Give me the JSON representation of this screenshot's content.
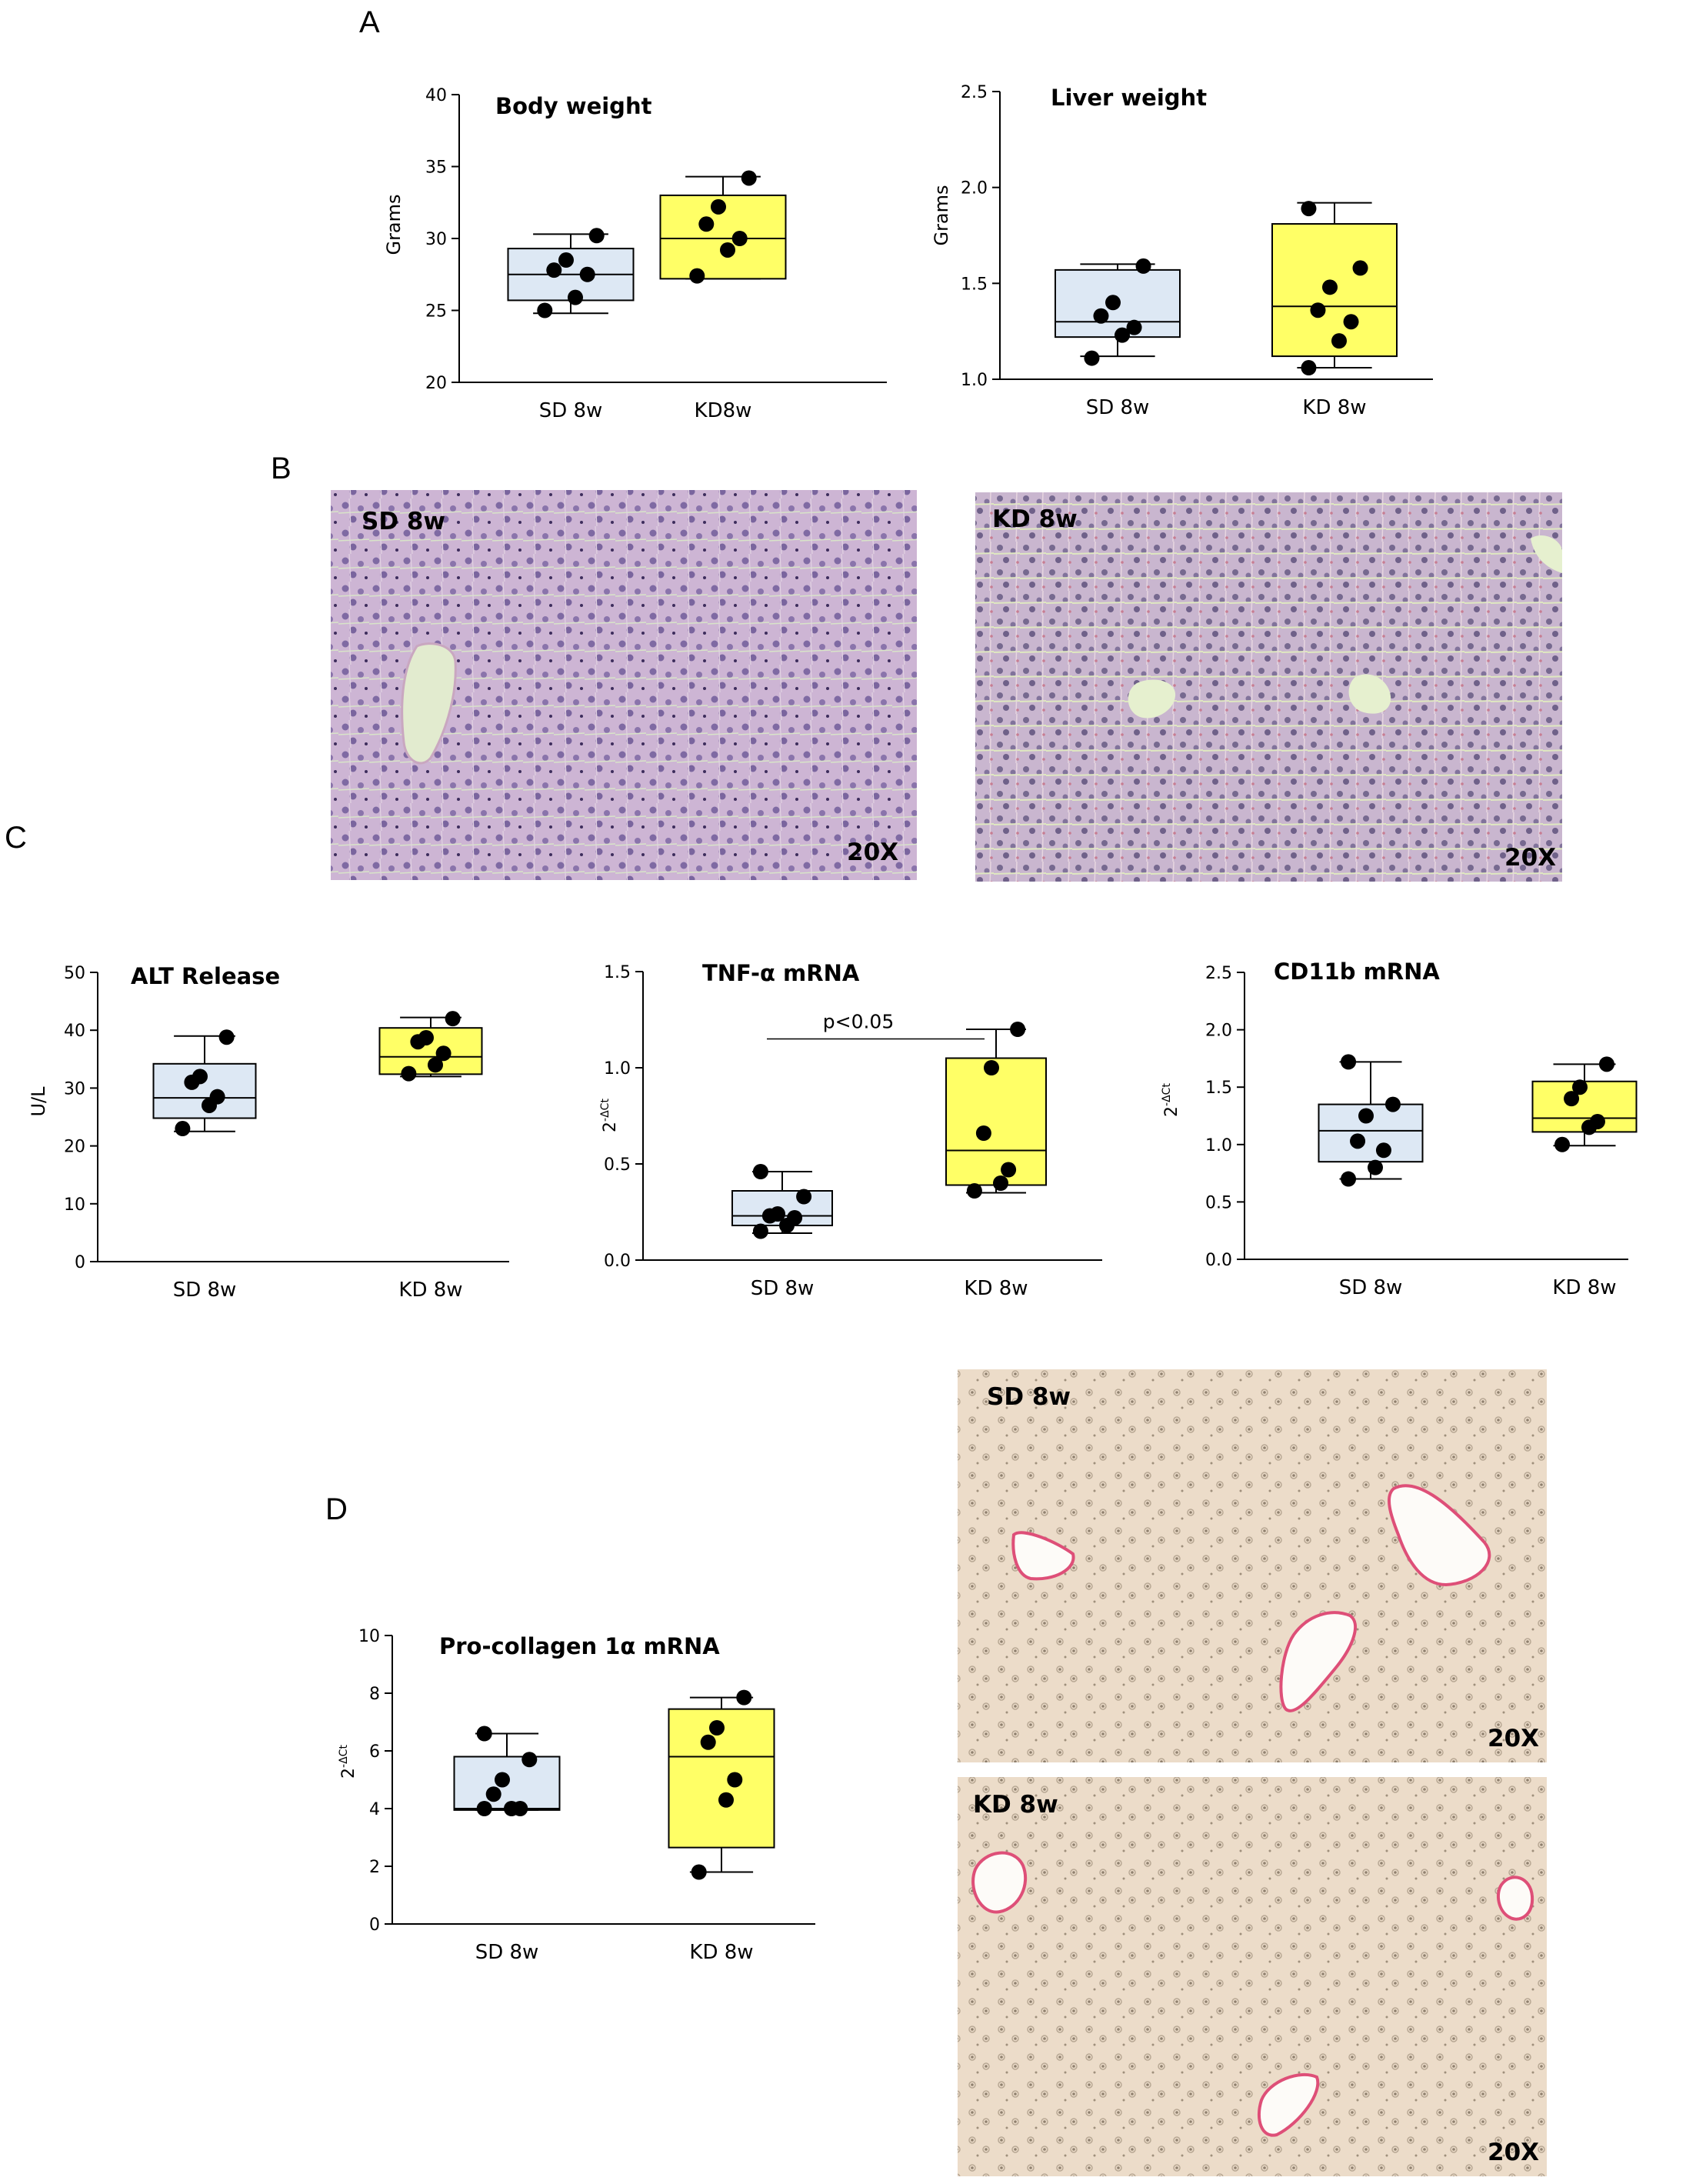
{
  "panels": {
    "A": "A",
    "B": "B",
    "C": "C",
    "D": "D"
  },
  "colors": {
    "sd_fill": "#dde8f4",
    "kd_fill": "#ffff66",
    "he_stain": "#c9b0d2",
    "picro_stain": "#ead9c8"
  },
  "chart_data": [
    {
      "type": "box",
      "title": "Body weight",
      "ylabel": "Grams",
      "ylim": [
        20,
        40
      ],
      "yticks": [
        20,
        25,
        30,
        35,
        40
      ],
      "categories": [
        "SD 8w",
        "KD8w"
      ],
      "boxes": [
        {
          "min": 24.8,
          "q1": 25.7,
          "median": 27.5,
          "q3": 29.3,
          "max": 30.3,
          "points": [
            25.0,
            25.9,
            27.5,
            27.8,
            28.5,
            30.2
          ],
          "fill": "#dde8f4"
        },
        {
          "min": 27.2,
          "q1": 27.2,
          "median": 30.0,
          "q3": 33.0,
          "max": 34.3,
          "points": [
            27.4,
            29.2,
            30.0,
            31.0,
            32.2,
            34.2
          ],
          "fill": "#ffff66"
        }
      ]
    },
    {
      "type": "box",
      "title": "Liver weight",
      "ylabel": "Grams",
      "ylim": [
        1.0,
        2.5
      ],
      "yticks": [
        "1.0",
        "1.5",
        "2.0",
        "2.5"
      ],
      "categories": [
        "SD 8w",
        "KD 8w"
      ],
      "boxes": [
        {
          "min": 1.12,
          "q1": 1.22,
          "median": 1.3,
          "q3": 1.57,
          "max": 1.6,
          "points": [
            1.11,
            1.23,
            1.27,
            1.33,
            1.4,
            1.59
          ],
          "fill": "#dde8f4"
        },
        {
          "min": 1.06,
          "q1": 1.12,
          "median": 1.38,
          "q3": 1.81,
          "max": 1.92,
          "points": [
            1.06,
            1.2,
            1.3,
            1.36,
            1.48,
            1.58,
            1.89
          ],
          "fill": "#ffff66"
        }
      ]
    },
    {
      "type": "box",
      "title": "ALT Release",
      "ylabel": "U/L",
      "ylim": [
        0,
        50
      ],
      "yticks": [
        0,
        10,
        20,
        30,
        40,
        50
      ],
      "categories": [
        "SD 8w",
        "KD 8w"
      ],
      "boxes": [
        {
          "min": 22.5,
          "q1": 24.8,
          "median": 28.3,
          "q3": 34.2,
          "max": 39.0,
          "points": [
            23.0,
            27.0,
            28.5,
            31.0,
            32.0,
            38.8
          ],
          "fill": "#dde8f4"
        },
        {
          "min": 32.0,
          "q1": 32.4,
          "median": 35.4,
          "q3": 40.4,
          "max": 42.2,
          "points": [
            32.5,
            34.0,
            36.0,
            38.0,
            38.7,
            42.0
          ],
          "fill": "#ffff66"
        }
      ]
    },
    {
      "type": "box",
      "title": "TNF-α mRNA",
      "ylabel": "2-ΔCt",
      "ylim": [
        0.0,
        1.5
      ],
      "yticks": [
        "0.0",
        "0.5",
        "1.0",
        "1.5"
      ],
      "categories": [
        "SD 8w",
        "KD 8w"
      ],
      "annotation": "p<0.05",
      "boxes": [
        {
          "min": 0.14,
          "q1": 0.18,
          "median": 0.23,
          "q3": 0.36,
          "max": 0.46,
          "points": [
            0.15,
            0.18,
            0.22,
            0.23,
            0.24,
            0.33,
            0.46
          ],
          "fill": "#dde8f4"
        },
        {
          "min": 0.35,
          "q1": 0.39,
          "median": 0.57,
          "q3": 1.05,
          "max": 1.2,
          "points": [
            0.36,
            0.4,
            0.47,
            0.66,
            1.0,
            1.2
          ],
          "fill": "#ffff66"
        }
      ]
    },
    {
      "type": "box",
      "title": "CD11b  mRNA",
      "ylabel": "2-ΔCt",
      "ylim": [
        0.0,
        2.5
      ],
      "yticks": [
        "0.0",
        "0.5",
        "1.0",
        "1.5",
        "2.0",
        "2.5"
      ],
      "categories": [
        "SD 8w",
        "KD 8w"
      ],
      "boxes": [
        {
          "min": 0.7,
          "q1": 0.85,
          "median": 1.12,
          "q3": 1.35,
          "max": 1.72,
          "points": [
            0.7,
            0.8,
            0.95,
            1.03,
            1.25,
            1.35,
            1.72
          ],
          "fill": "#dde8f4"
        },
        {
          "min": 0.99,
          "q1": 1.11,
          "median": 1.23,
          "q3": 1.55,
          "max": 1.7,
          "points": [
            1.0,
            1.15,
            1.2,
            1.4,
            1.5,
            1.7
          ],
          "fill": "#ffff66"
        }
      ]
    },
    {
      "type": "box",
      "title": "Pro-collagen 1α mRNA",
      "ylabel": "2-ΔCt",
      "ylim": [
        0,
        10
      ],
      "yticks": [
        0,
        2,
        4,
        6,
        8,
        10
      ],
      "categories": [
        "SD 8w",
        "KD 8w"
      ],
      "boxes": [
        {
          "min": 3.95,
          "q1": 3.95,
          "median": 4.0,
          "q3": 5.8,
          "max": 6.6,
          "points": [
            4.0,
            4.0,
            4.0,
            4.5,
            5.0,
            5.7,
            6.6
          ],
          "fill": "#dde8f4"
        },
        {
          "min": 1.8,
          "q1": 2.65,
          "median": 5.8,
          "q3": 7.45,
          "max": 7.85,
          "points": [
            1.8,
            4.3,
            5.0,
            6.3,
            6.8,
            7.85
          ],
          "fill": "#ffff66"
        }
      ]
    }
  ],
  "micrographs": [
    {
      "label": "SD 8w",
      "mag": "20X",
      "stain": "he"
    },
    {
      "label": "KD 8w",
      "mag": "20X",
      "stain": "he"
    },
    {
      "label": "SD 8w",
      "mag": "20X",
      "stain": "picro"
    },
    {
      "label": "KD 8w",
      "mag": "20X",
      "stain": "picro"
    }
  ]
}
